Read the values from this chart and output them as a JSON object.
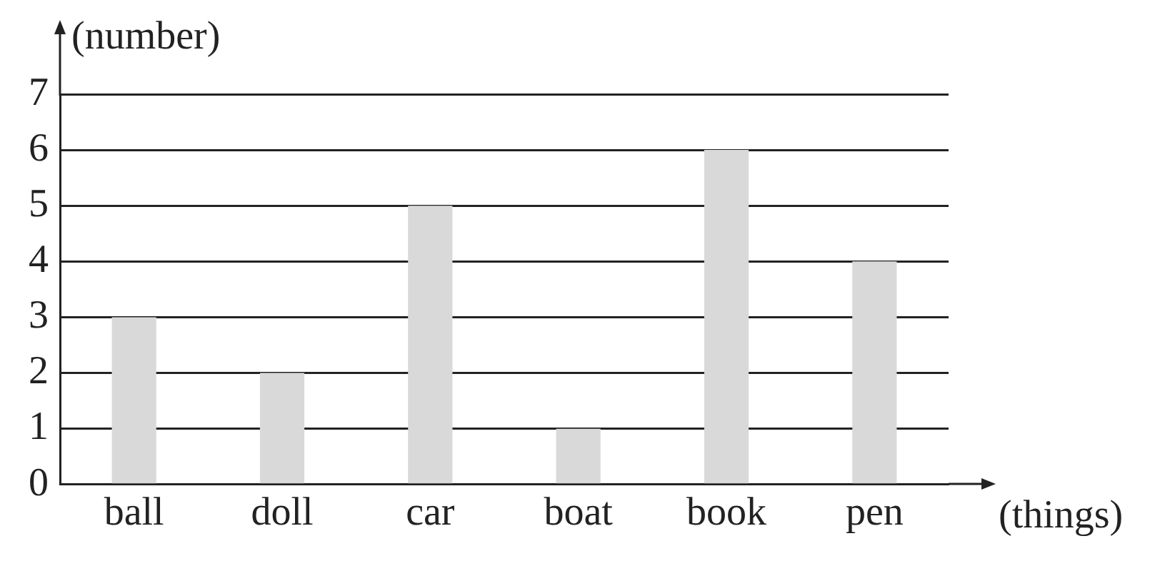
{
  "chart_data": {
    "type": "bar",
    "xlabel": "(things)",
    "ylabel": "(number)",
    "categories": [
      "ball",
      "doll",
      "car",
      "boat",
      "book",
      "pen"
    ],
    "values": [
      3,
      2,
      5,
      1,
      6,
      4
    ],
    "color": "#d9d9d9",
    "ylim": [
      0,
      7
    ],
    "yticks": [
      0,
      1,
      2,
      3,
      4,
      5,
      6,
      7
    ],
    "grid": "y"
  }
}
